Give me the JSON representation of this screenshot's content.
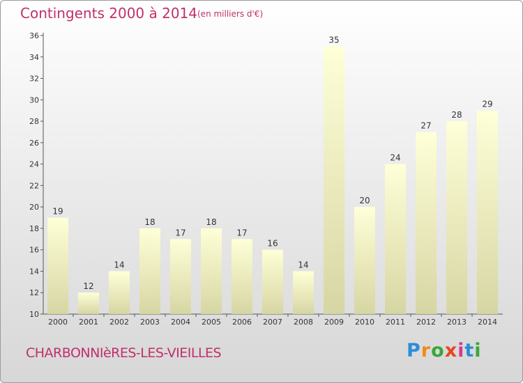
{
  "title": "Contingents 2000 à 2014",
  "unit_note": "(en milliers d'€)",
  "commune": "CHARBONNIèRES-LES-VIEILLES",
  "logo": {
    "letters": [
      "P",
      "r",
      "o",
      "x",
      "i",
      "t",
      "i"
    ],
    "colors": [
      "#2a8fd6",
      "#f08a1c",
      "#3aa63a",
      "#e8451e",
      "#d63a8e",
      "#2a8fd6",
      "#3aa63a"
    ]
  },
  "colors": {
    "title": "#c0306a",
    "bar_top": "#ffffd8",
    "bar_bottom": "#d6d6a4"
  },
  "chart_data": {
    "type": "bar",
    "categories": [
      "2000",
      "2001",
      "2002",
      "2003",
      "2004",
      "2005",
      "2006",
      "2007",
      "2008",
      "2009",
      "2010",
      "2011",
      "2012",
      "2013",
      "2014"
    ],
    "values": [
      19,
      12,
      14,
      18,
      17,
      18,
      17,
      16,
      14,
      35,
      20,
      24,
      27,
      28,
      29
    ],
    "title": "Contingents 2000 à 2014",
    "ylim": [
      10,
      36
    ],
    "yticks": [
      10,
      12,
      14,
      16,
      18,
      20,
      22,
      24,
      26,
      28,
      30,
      32,
      34,
      36
    ],
    "grid": false
  }
}
